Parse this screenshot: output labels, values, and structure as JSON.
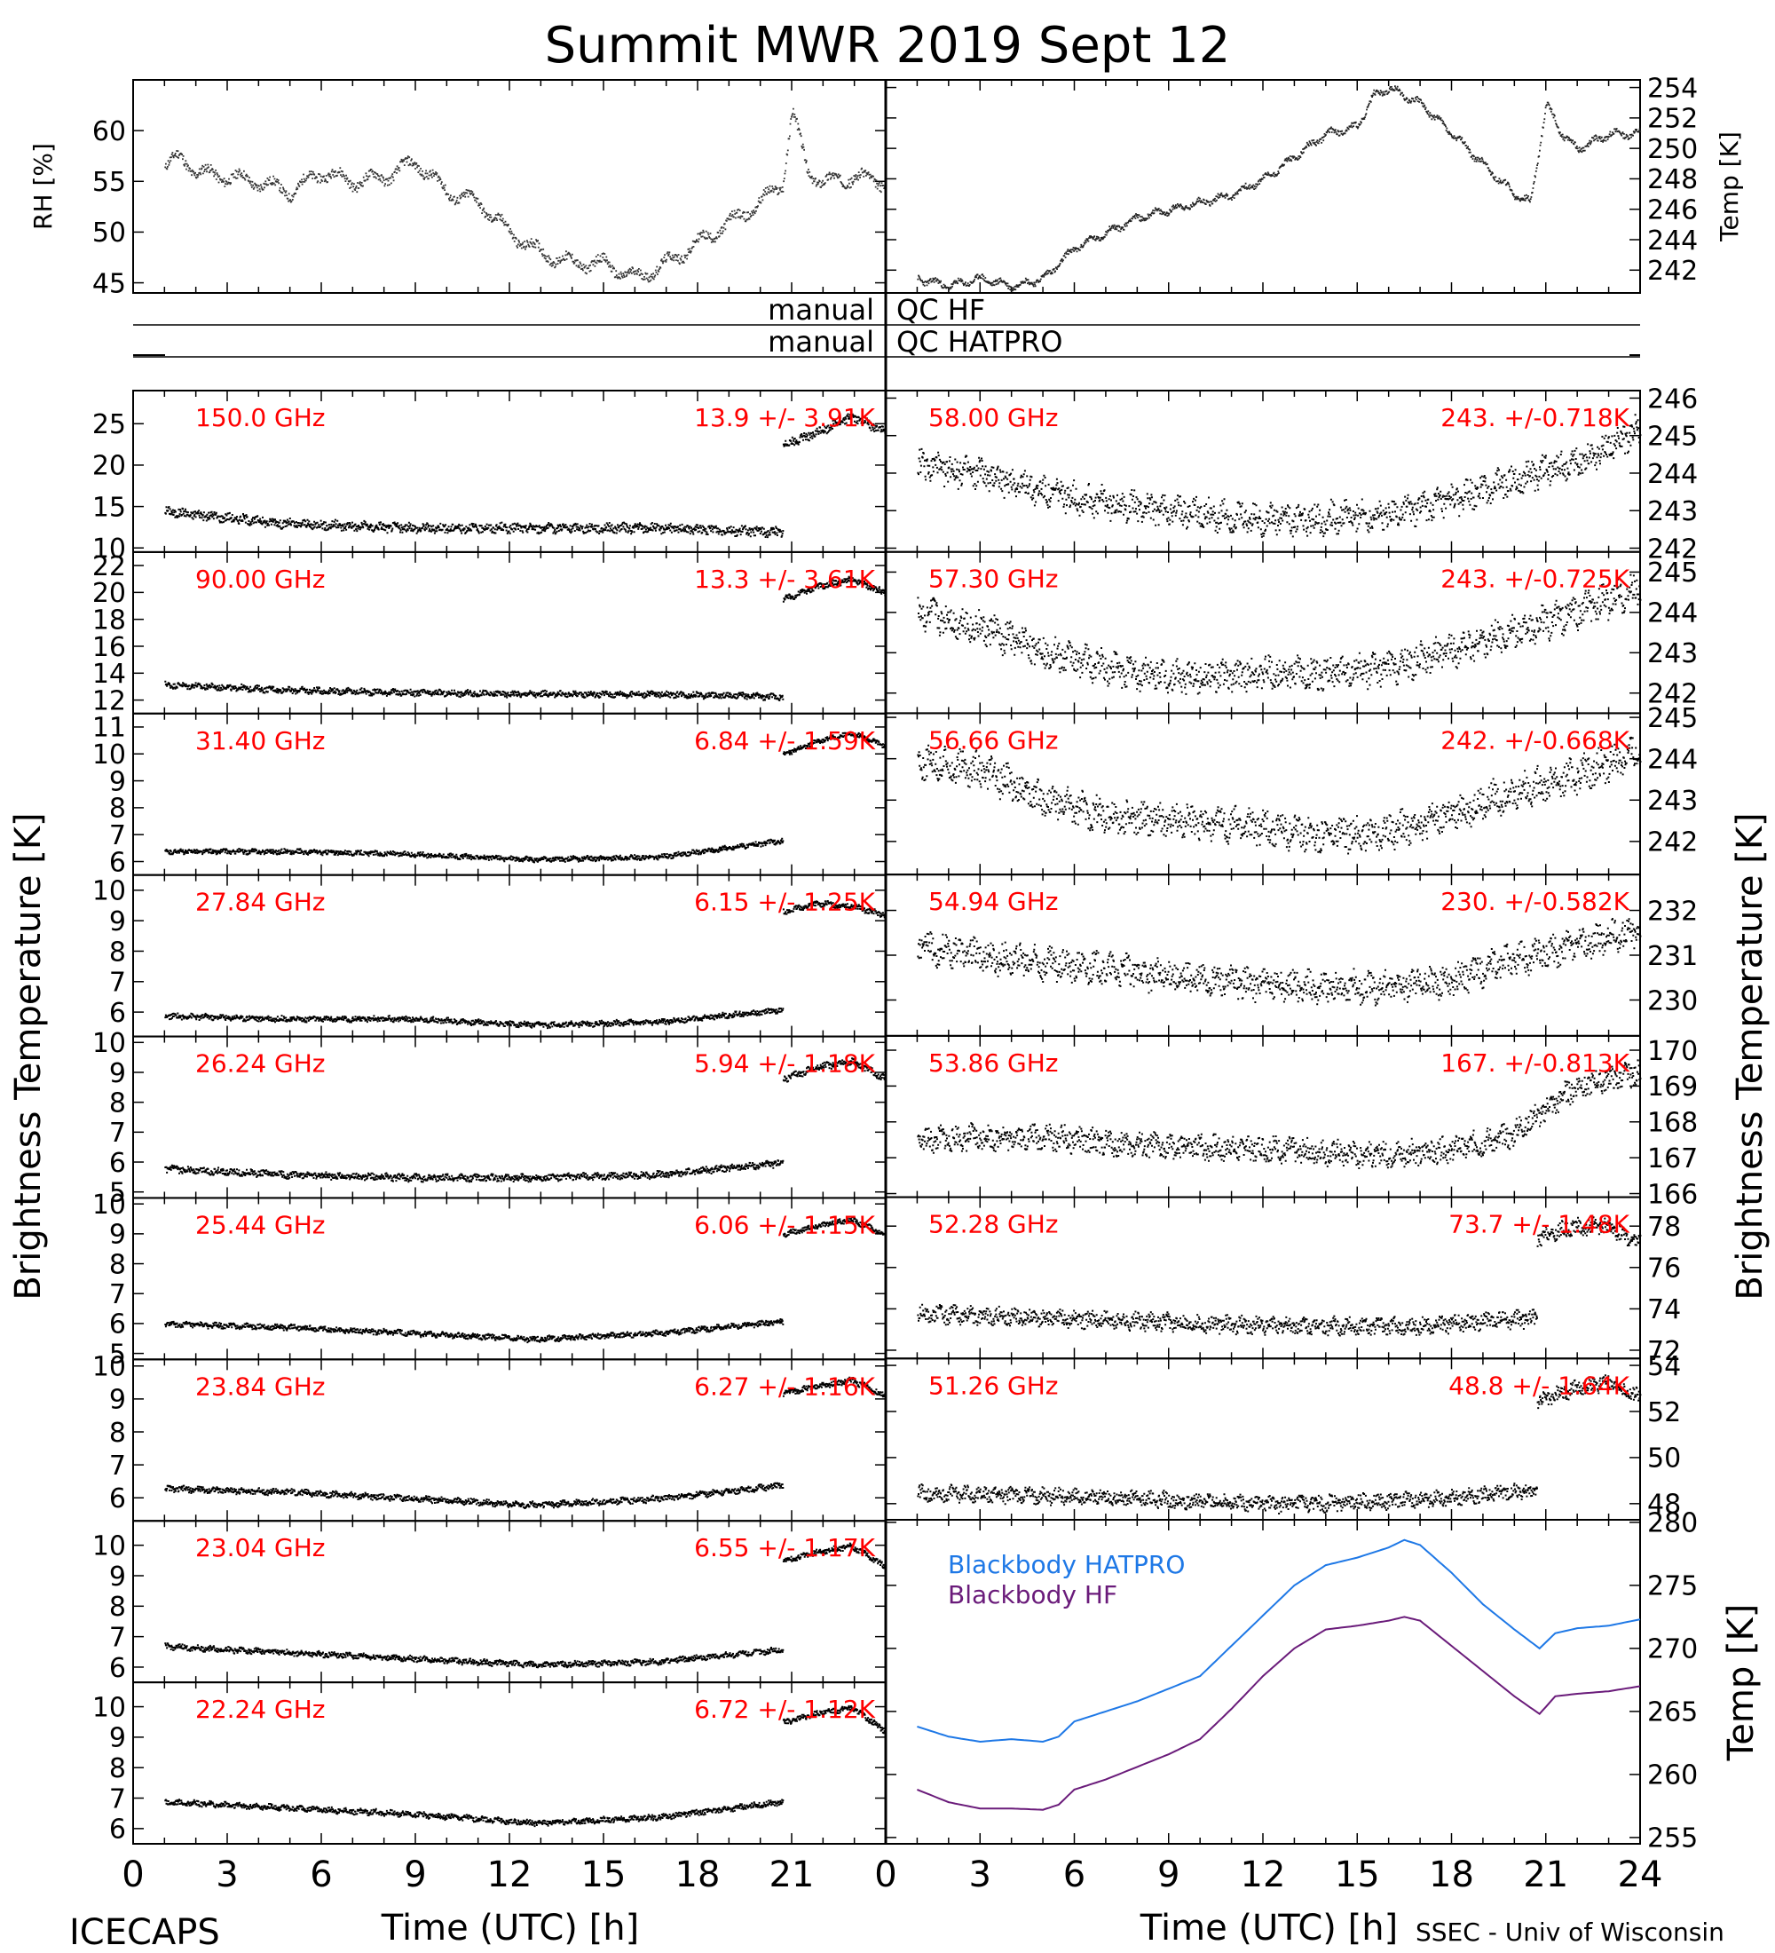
{
  "title": "Summit MWR 2019 Sept 12",
  "footer": {
    "left": "ICECAPS",
    "right": "SSEC - Univ of Wisconsin"
  },
  "qc": {
    "left_label_1": "manual",
    "right_label_1": "QC HF",
    "left_label_2": "manual",
    "right_label_2": "QC HATPRO"
  },
  "side_labels": {
    "left": "Brightness Temperature [K]",
    "right": "Brightness Temperature [K]"
  },
  "colors": {
    "axis": "#000000",
    "annotation": "#ff0000",
    "hatpro": "#1e78e6",
    "hf": "#6a1b7a",
    "data": "#000000"
  },
  "chart_data": [
    {
      "type": "scatter",
      "panel": "rh",
      "ylabel": "RH [%]",
      "xlim": [
        0,
        24
      ],
      "ylim": [
        44,
        65
      ],
      "yticks": [
        45,
        50,
        55,
        60
      ],
      "series": [
        {
          "x": [
            1,
            1.5,
            2,
            3,
            4,
            5,
            6,
            7,
            8,
            9,
            10,
            11,
            12,
            13,
            14,
            15,
            16,
            17,
            18,
            19,
            20,
            20.7,
            21,
            21.5,
            22,
            23,
            24
          ],
          "values": [
            56.5,
            57.5,
            56,
            55.5,
            55,
            54,
            56,
            55,
            55.5,
            57,
            54,
            53,
            50,
            48,
            47,
            47,
            45.5,
            47,
            49,
            51,
            53,
            55,
            62,
            56,
            55,
            55.5,
            55
          ]
        }
      ]
    },
    {
      "type": "scatter",
      "panel": "temp",
      "ylabel": "Temp [K]",
      "xlim": [
        0,
        24
      ],
      "ylim": [
        240.5,
        254.5
      ],
      "yticks": [
        242,
        244,
        246,
        248,
        250,
        252,
        254
      ],
      "series": [
        {
          "x": [
            1,
            2,
            3,
            4,
            5,
            6,
            7,
            8,
            9,
            10,
            11,
            12,
            13,
            14,
            15,
            15.5,
            16,
            17,
            18,
            19,
            20,
            20.5,
            21,
            21.5,
            22,
            23,
            24
          ],
          "values": [
            241.5,
            241,
            241.5,
            241,
            241.5,
            243.5,
            244.5,
            245.5,
            246,
            246.5,
            247,
            248,
            249.5,
            251,
            251.5,
            253.5,
            254,
            253,
            251,
            249,
            247,
            246.5,
            253,
            251,
            250,
            251,
            251
          ]
        }
      ]
    }
  ],
  "panels_left": [
    {
      "freq": "150.0 GHz",
      "stat": "13.9 +/- 3.91K",
      "ylim": [
        9.5,
        29
      ],
      "yticks": [
        10,
        15,
        20,
        25
      ],
      "pre": [
        14.5,
        13,
        12.5,
        12.5,
        12.5,
        12
      ],
      "post": [
        22.5,
        24,
        26,
        24
      ],
      "noise": 0.5
    },
    {
      "freq": "90.00 GHz",
      "stat": "13.3 +/- 3.61K",
      "ylim": [
        11,
        23
      ],
      "yticks": [
        12,
        14,
        16,
        18,
        20,
        22
      ],
      "pre": [
        13.2,
        12.8,
        12.6,
        12.5,
        12.5,
        12.3
      ],
      "post": [
        19.5,
        20.5,
        21,
        20
      ],
      "noise": 0.2
    },
    {
      "freq": "31.40 GHz",
      "stat": "6.84 +/- 1.59K",
      "ylim": [
        5.5,
        11.5
      ],
      "yticks": [
        6,
        7,
        8,
        9,
        10,
        11
      ],
      "pre": [
        6.4,
        6.4,
        6.3,
        6.1,
        6.2,
        6.8
      ],
      "post": [
        10,
        10.5,
        10.8,
        10.3
      ],
      "noise": 0.08
    },
    {
      "freq": "27.84 GHz",
      "stat": "6.15 +/- 1.25K",
      "ylim": [
        5.2,
        10.5
      ],
      "yticks": [
        6,
        7,
        8,
        9,
        10
      ],
      "pre": [
        5.9,
        5.8,
        5.8,
        5.6,
        5.7,
        6.1
      ],
      "post": [
        9.3,
        9.6,
        9.5,
        9.2
      ],
      "noise": 0.08
    },
    {
      "freq": "26.24 GHz",
      "stat": "5.94 +/- 1.18K",
      "ylim": [
        4.8,
        10.2
      ],
      "yticks": [
        5,
        6,
        7,
        8,
        9,
        10
      ],
      "pre": [
        5.8,
        5.6,
        5.5,
        5.5,
        5.6,
        6
      ],
      "post": [
        8.8,
        9.2,
        9.4,
        8.8
      ],
      "noise": 0.1
    },
    {
      "freq": "25.44 GHz",
      "stat": "6.06 +/- 1.15K",
      "ylim": [
        4.8,
        10.2
      ],
      "yticks": [
        5,
        6,
        7,
        8,
        9,
        10
      ],
      "pre": [
        6,
        5.9,
        5.7,
        5.5,
        5.7,
        6.1
      ],
      "post": [
        9,
        9.3,
        9.5,
        9
      ],
      "noise": 0.08
    },
    {
      "freq": "23.84 GHz",
      "stat": "6.27 +/- 1.16K",
      "ylim": [
        5.3,
        10.2
      ],
      "yticks": [
        6,
        7,
        8,
        9,
        10
      ],
      "pre": [
        6.3,
        6.2,
        6.0,
        5.8,
        6.0,
        6.4
      ],
      "post": [
        9.2,
        9.4,
        9.6,
        9.1
      ],
      "noise": 0.08
    },
    {
      "freq": "23.04 GHz",
      "stat": "6.55 +/- 1.17K",
      "ylim": [
        5.5,
        10.8
      ],
      "yticks": [
        6,
        7,
        8,
        9,
        10
      ],
      "pre": [
        6.7,
        6.5,
        6.3,
        6.1,
        6.2,
        6.6
      ],
      "post": [
        9.5,
        9.8,
        10,
        9.3
      ],
      "noise": 0.08
    },
    {
      "freq": "22.24 GHz",
      "stat": "6.72 +/- 1.12K",
      "ylim": [
        5.5,
        10.8
      ],
      "yticks": [
        6,
        7,
        8,
        9,
        10
      ],
      "pre": [
        6.9,
        6.7,
        6.5,
        6.2,
        6.4,
        6.9
      ],
      "post": [
        9.5,
        9.8,
        10,
        9.2
      ],
      "noise": 0.08
    }
  ],
  "panels_right": [
    {
      "freq": "58.00 GHz",
      "stat": "243. +/-0.718K",
      "ylim": [
        241.9,
        246.2
      ],
      "yticks": [
        242,
        243,
        244,
        245,
        246
      ],
      "curve": [
        244.2,
        244,
        243.5,
        243.2,
        243,
        242.8,
        242.8,
        242.9,
        243.2,
        243.8,
        244.3,
        245.2
      ],
      "noise": 0.35
    },
    {
      "freq": "57.30 GHz",
      "stat": "243. +/-0.725K",
      "ylim": [
        241.5,
        245.5
      ],
      "yticks": [
        242,
        243,
        244,
        245
      ],
      "curve": [
        244,
        243.6,
        243,
        242.6,
        242.4,
        242.5,
        242.5,
        242.6,
        243,
        243.5,
        244,
        244.6
      ],
      "noise": 0.35
    },
    {
      "freq": "56.66 GHz",
      "stat": "242. +/-0.668K",
      "ylim": [
        241.2,
        245.1
      ],
      "yticks": [
        242,
        243,
        244,
        245
      ],
      "curve": [
        244,
        243.7,
        243,
        242.6,
        242.5,
        242.4,
        242.2,
        242.2,
        242.6,
        243.2,
        243.6,
        244.2
      ],
      "noise": 0.35
    },
    {
      "freq": "54.94 GHz",
      "stat": "230. +/-0.582K",
      "ylim": [
        229.2,
        232.8
      ],
      "yticks": [
        230,
        231,
        232
      ],
      "curve": [
        231.2,
        231,
        230.8,
        230.7,
        230.5,
        230.4,
        230.3,
        230.3,
        230.4,
        230.9,
        231.2,
        231.6
      ],
      "noise": 0.3
    },
    {
      "freq": "53.86 GHz",
      "stat": "167. +/-0.813K",
      "ylim": [
        165.9,
        170.4
      ],
      "yticks": [
        166,
        167,
        168,
        169,
        170
      ],
      "curve": [
        167.5,
        167.6,
        167.6,
        167.4,
        167.3,
        167.3,
        167.2,
        167.1,
        167.2,
        167.6,
        169,
        169.4
      ],
      "noise": 0.3
    },
    {
      "freq": "52.28 GHz",
      "stat": "73.7 +/- 1.48K",
      "ylim": [
        71.6,
        79.4
      ],
      "yticks": [
        72,
        74,
        76,
        78
      ],
      "pre": [
        73.8,
        73.6,
        73.4,
        73.2,
        73.2,
        73.6
      ],
      "post": [
        77.4,
        78,
        78,
        77.2
      ],
      "noise": 0.35
    },
    {
      "freq": "51.26 GHz",
      "stat": "48.8 +/- 1.64K",
      "ylim": [
        47.3,
        54.3
      ],
      "yticks": [
        48,
        50,
        52,
        54
      ],
      "pre": [
        48.5,
        48.4,
        48.2,
        48,
        48.2,
        48.6
      ],
      "post": [
        52.5,
        53,
        53.3,
        52.6
      ],
      "noise": 0.3
    }
  ],
  "blackbody": {
    "ylabel": "Temp [K]",
    "ylim": [
      254.5,
      280.2
    ],
    "yticks": [
      255,
      260,
      265,
      270,
      275,
      280
    ],
    "x": [
      1,
      2,
      3,
      4,
      5,
      5.5,
      6,
      7,
      8,
      9,
      10,
      11,
      12,
      13,
      14,
      15,
      16,
      16.5,
      17,
      18,
      19,
      20,
      20.8,
      21.3,
      22,
      23,
      24
    ],
    "series": [
      {
        "name": "Blackbody HATPRO",
        "values": [
          263.8,
          263,
          262.6,
          262.8,
          262.6,
          263,
          264.2,
          265,
          265.8,
          266.8,
          267.8,
          270.2,
          272.6,
          275,
          276.6,
          277.2,
          278,
          278.6,
          278.2,
          276,
          273.5,
          271.5,
          270,
          271.2,
          271.6,
          271.8,
          272.3
        ]
      },
      {
        "name": "Blackbody HF",
        "values": [
          258.8,
          257.8,
          257.3,
          257.3,
          257.2,
          257.6,
          258.8,
          259.6,
          260.6,
          261.6,
          262.8,
          265.2,
          267.8,
          270,
          271.5,
          271.8,
          272.2,
          272.5,
          272.2,
          270.2,
          268.2,
          266.2,
          264.8,
          266.2,
          266.4,
          266.6,
          267
        ]
      }
    ]
  },
  "x_axis": {
    "label": "Time (UTC) [h]",
    "ticks_left": [
      "0",
      "3",
      "6",
      "9",
      "12",
      "15",
      "18",
      "21"
    ],
    "ticks_right": [
      "0",
      "3",
      "6",
      "9",
      "12",
      "15",
      "18",
      "21",
      "24"
    ]
  }
}
